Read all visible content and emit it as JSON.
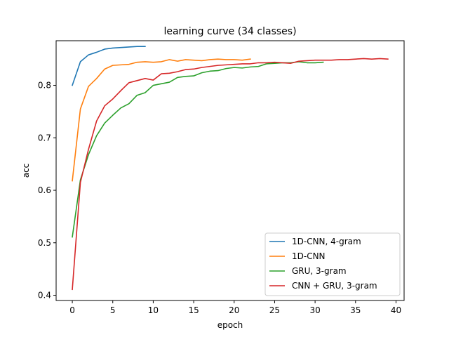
{
  "chart_data": {
    "type": "line",
    "title": "learning curve (34 classes)",
    "xlabel": "epoch",
    "ylabel": "acc",
    "xlim": [
      -2,
      41
    ],
    "ylim": [
      0.39,
      0.885
    ],
    "xticks": [
      0,
      5,
      10,
      15,
      20,
      25,
      30,
      35,
      40
    ],
    "yticks": [
      0.4,
      0.5,
      0.6,
      0.7,
      0.8
    ],
    "ytick_labels": [
      "0.4",
      "0.5",
      "0.6",
      "0.7",
      "0.8"
    ],
    "legend_position": "lower-right",
    "series": [
      {
        "name": "1D-CNN, 4-gram",
        "color": "#1f77b4",
        "values": [
          0.8,
          0.845,
          0.858,
          0.863,
          0.869,
          0.871,
          0.872,
          0.873,
          0.874,
          0.874
        ]
      },
      {
        "name": "1D-CNN",
        "color": "#ff7f0e",
        "values": [
          0.618,
          0.755,
          0.798,
          0.813,
          0.831,
          0.838,
          0.839,
          0.84,
          0.844,
          0.845,
          0.844,
          0.845,
          0.849,
          0.846,
          0.849,
          0.848,
          0.847,
          0.849,
          0.85,
          0.849,
          0.849,
          0.848,
          0.85
        ]
      },
      {
        "name": "GRU, 3-gram",
        "color": "#2ca02c",
        "values": [
          0.511,
          0.62,
          0.668,
          0.704,
          0.728,
          0.743,
          0.757,
          0.765,
          0.781,
          0.786,
          0.8,
          0.803,
          0.806,
          0.815,
          0.817,
          0.818,
          0.824,
          0.827,
          0.828,
          0.832,
          0.834,
          0.833,
          0.835,
          0.836,
          0.841,
          0.842,
          0.843,
          0.843,
          0.845,
          0.843,
          0.843,
          0.844
        ]
      },
      {
        "name": "CNN + GRU, 3-gram",
        "color": "#d62728",
        "values": [
          0.411,
          0.615,
          0.678,
          0.732,
          0.761,
          0.774,
          0.79,
          0.805,
          0.809,
          0.813,
          0.81,
          0.822,
          0.823,
          0.826,
          0.83,
          0.831,
          0.834,
          0.836,
          0.838,
          0.839,
          0.84,
          0.841,
          0.841,
          0.843,
          0.843,
          0.844,
          0.843,
          0.842,
          0.846,
          0.847,
          0.848,
          0.848,
          0.848,
          0.849,
          0.849,
          0.85,
          0.851,
          0.85,
          0.851,
          0.85
        ]
      }
    ]
  }
}
